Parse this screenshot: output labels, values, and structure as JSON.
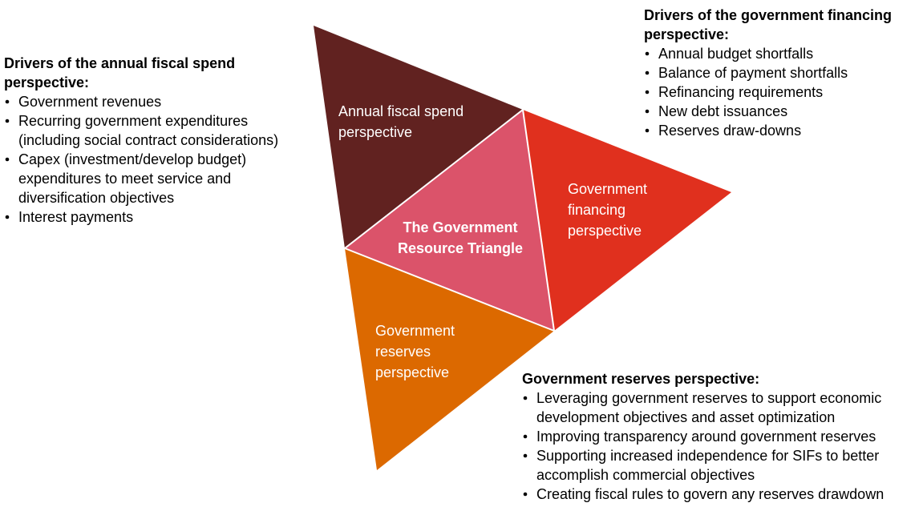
{
  "diagram": {
    "center": {
      "lines": [
        "The Government",
        "Resource Triangle"
      ]
    },
    "segments": [
      {
        "lines": [
          "Annual fiscal spend",
          "perspective"
        ]
      },
      {
        "lines": [
          "Government",
          "financing",
          "perspective"
        ]
      },
      {
        "lines": [
          "Government",
          "reserves",
          "perspective"
        ]
      }
    ],
    "panels": [
      {
        "title": [
          "Drivers of the annual fiscal spend",
          "perspective:"
        ],
        "items": [
          [
            "Government revenues"
          ],
          [
            "Recurring government expenditures",
            "(including social contract considerations)"
          ],
          [
            "Capex (investment/develop budget)",
            "expenditures to meet service and",
            "diversification objectives"
          ],
          [
            "Interest payments"
          ]
        ]
      },
      {
        "title": [
          "Drivers of the government financing",
          "perspective:"
        ],
        "items": [
          [
            "Annual budget shortfalls"
          ],
          [
            "Balance of payment shortfalls"
          ],
          [
            "Refinancing requirements"
          ],
          [
            "New debt issuances"
          ],
          [
            "Reserves draw-downs"
          ]
        ]
      },
      {
        "title": [
          "Government reserves perspective:"
        ],
        "items": [
          [
            "Leveraging government reserves to support economic",
            "development objectives and asset optimization"
          ],
          [
            "Improving transparency around government reserves"
          ],
          [
            "Supporting increased independence for SIFs to better",
            "accomplish commercial objectives"
          ],
          [
            "Creating fiscal rules to govern any reserves drawdown"
          ]
        ]
      }
    ]
  }
}
